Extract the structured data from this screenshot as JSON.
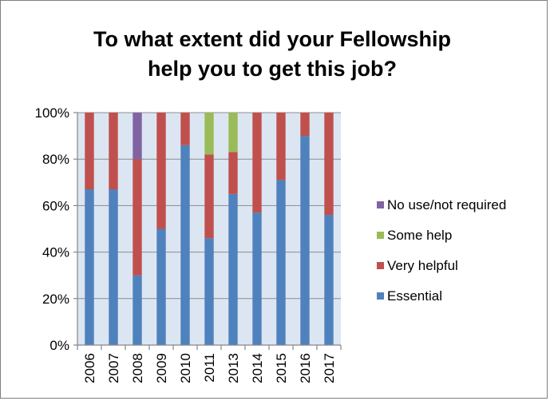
{
  "chart_data": {
    "type": "bar",
    "stacked": true,
    "percent": true,
    "title": "To what extent did your Fellowship help you to get this job?",
    "categories": [
      "2006",
      "2007",
      "2008",
      "2009",
      "2010",
      "2011",
      "2013",
      "2014",
      "2015",
      "2016",
      "2017"
    ],
    "series": [
      {
        "name": "Essential",
        "color": "#4f81bd",
        "values": [
          67,
          67,
          30,
          50,
          86,
          46,
          65,
          57,
          71,
          90,
          56
        ]
      },
      {
        "name": "Very helpful",
        "color": "#c0504d",
        "values": [
          33,
          33,
          50,
          50,
          14,
          36,
          18,
          43,
          29,
          10,
          44
        ]
      },
      {
        "name": "Some help",
        "color": "#9bbb59",
        "values": [
          0,
          0,
          0,
          0,
          0,
          18,
          17,
          0,
          0,
          0,
          0
        ]
      },
      {
        "name": "No use/not required",
        "color": "#8064a2",
        "values": [
          0,
          0,
          20,
          0,
          0,
          0,
          0,
          0,
          0,
          0,
          0
        ]
      }
    ],
    "y_ticks": [
      "0%",
      "20%",
      "40%",
      "60%",
      "80%",
      "100%"
    ],
    "ylim": [
      0,
      100
    ],
    "plot_background": "#dce6f2",
    "gridlines": true,
    "legend_position": "right"
  }
}
